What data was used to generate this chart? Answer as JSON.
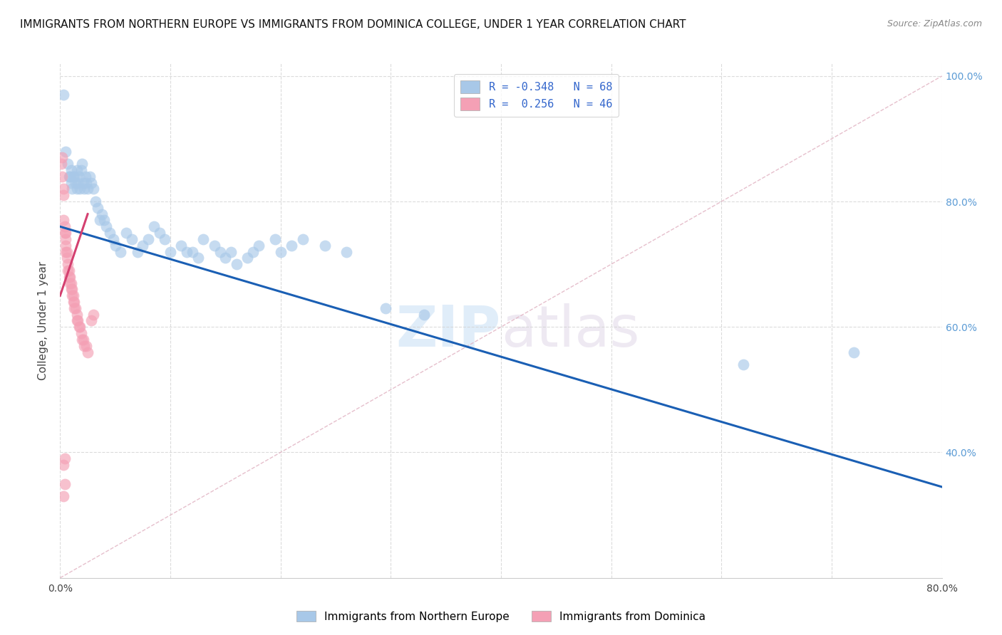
{
  "title": "IMMIGRANTS FROM NORTHERN EUROPE VS IMMIGRANTS FROM DOMINICA COLLEGE, UNDER 1 YEAR CORRELATION CHART",
  "source": "Source: ZipAtlas.com",
  "ylabel": "College, Under 1 year",
  "legend_label_blue": "Immigrants from Northern Europe",
  "legend_label_pink": "Immigrants from Dominica",
  "R_blue": -0.348,
  "N_blue": 68,
  "R_pink": 0.256,
  "N_pink": 46,
  "blue_color": "#a8c8e8",
  "pink_color": "#f4a0b5",
  "blue_line_color": "#1a5fb4",
  "pink_line_color": "#d44070",
  "diag_color": "#e0b0c0",
  "watermark": "ZIPatlas",
  "xlim": [
    0.0,
    0.8
  ],
  "ylim": [
    0.2,
    1.02
  ],
  "blue_x": [
    0.003,
    0.005,
    0.007,
    0.008,
    0.009,
    0.01,
    0.01,
    0.011,
    0.012,
    0.013,
    0.014,
    0.015,
    0.015,
    0.016,
    0.017,
    0.018,
    0.019,
    0.02,
    0.021,
    0.022,
    0.023,
    0.024,
    0.025,
    0.027,
    0.028,
    0.03,
    0.032,
    0.034,
    0.036,
    0.038,
    0.04,
    0.042,
    0.045,
    0.048,
    0.05,
    0.055,
    0.06,
    0.065,
    0.07,
    0.075,
    0.08,
    0.085,
    0.09,
    0.095,
    0.1,
    0.11,
    0.115,
    0.12,
    0.125,
    0.13,
    0.14,
    0.145,
    0.15,
    0.155,
    0.16,
    0.17,
    0.175,
    0.18,
    0.195,
    0.2,
    0.21,
    0.22,
    0.24,
    0.26,
    0.295,
    0.33,
    0.62,
    0.72
  ],
  "blue_y": [
    0.97,
    0.88,
    0.86,
    0.84,
    0.84,
    0.83,
    0.85,
    0.82,
    0.84,
    0.84,
    0.83,
    0.82,
    0.85,
    0.83,
    0.84,
    0.82,
    0.85,
    0.86,
    0.83,
    0.82,
    0.84,
    0.83,
    0.82,
    0.84,
    0.83,
    0.82,
    0.8,
    0.79,
    0.77,
    0.78,
    0.77,
    0.76,
    0.75,
    0.74,
    0.73,
    0.72,
    0.75,
    0.74,
    0.72,
    0.73,
    0.74,
    0.76,
    0.75,
    0.74,
    0.72,
    0.73,
    0.72,
    0.72,
    0.71,
    0.74,
    0.73,
    0.72,
    0.71,
    0.72,
    0.7,
    0.71,
    0.72,
    0.73,
    0.74,
    0.72,
    0.73,
    0.74,
    0.73,
    0.72,
    0.63,
    0.62,
    0.54,
    0.56
  ],
  "pink_x": [
    0.001,
    0.002,
    0.002,
    0.003,
    0.003,
    0.003,
    0.004,
    0.004,
    0.005,
    0.005,
    0.005,
    0.005,
    0.006,
    0.006,
    0.007,
    0.007,
    0.008,
    0.008,
    0.009,
    0.009,
    0.01,
    0.01,
    0.011,
    0.011,
    0.012,
    0.012,
    0.013,
    0.013,
    0.014,
    0.015,
    0.015,
    0.016,
    0.017,
    0.018,
    0.019,
    0.02,
    0.021,
    0.022,
    0.024,
    0.025,
    0.003,
    0.004,
    0.028,
    0.03,
    0.003,
    0.004
  ],
  "pink_y": [
    0.86,
    0.87,
    0.84,
    0.82,
    0.81,
    0.77,
    0.76,
    0.75,
    0.75,
    0.74,
    0.73,
    0.72,
    0.72,
    0.71,
    0.7,
    0.69,
    0.69,
    0.68,
    0.68,
    0.67,
    0.67,
    0.66,
    0.66,
    0.65,
    0.65,
    0.64,
    0.64,
    0.63,
    0.63,
    0.62,
    0.61,
    0.61,
    0.6,
    0.6,
    0.59,
    0.58,
    0.58,
    0.57,
    0.57,
    0.56,
    0.38,
    0.39,
    0.61,
    0.62,
    0.33,
    0.35
  ],
  "blue_line_x": [
    0.0,
    0.8
  ],
  "blue_line_y": [
    0.76,
    0.345
  ],
  "pink_line_x": [
    0.0,
    0.025
  ],
  "pink_line_y": [
    0.65,
    0.78
  ],
  "diag_line_x": [
    0.0,
    0.8
  ],
  "diag_line_y": [
    0.2,
    1.0
  ]
}
